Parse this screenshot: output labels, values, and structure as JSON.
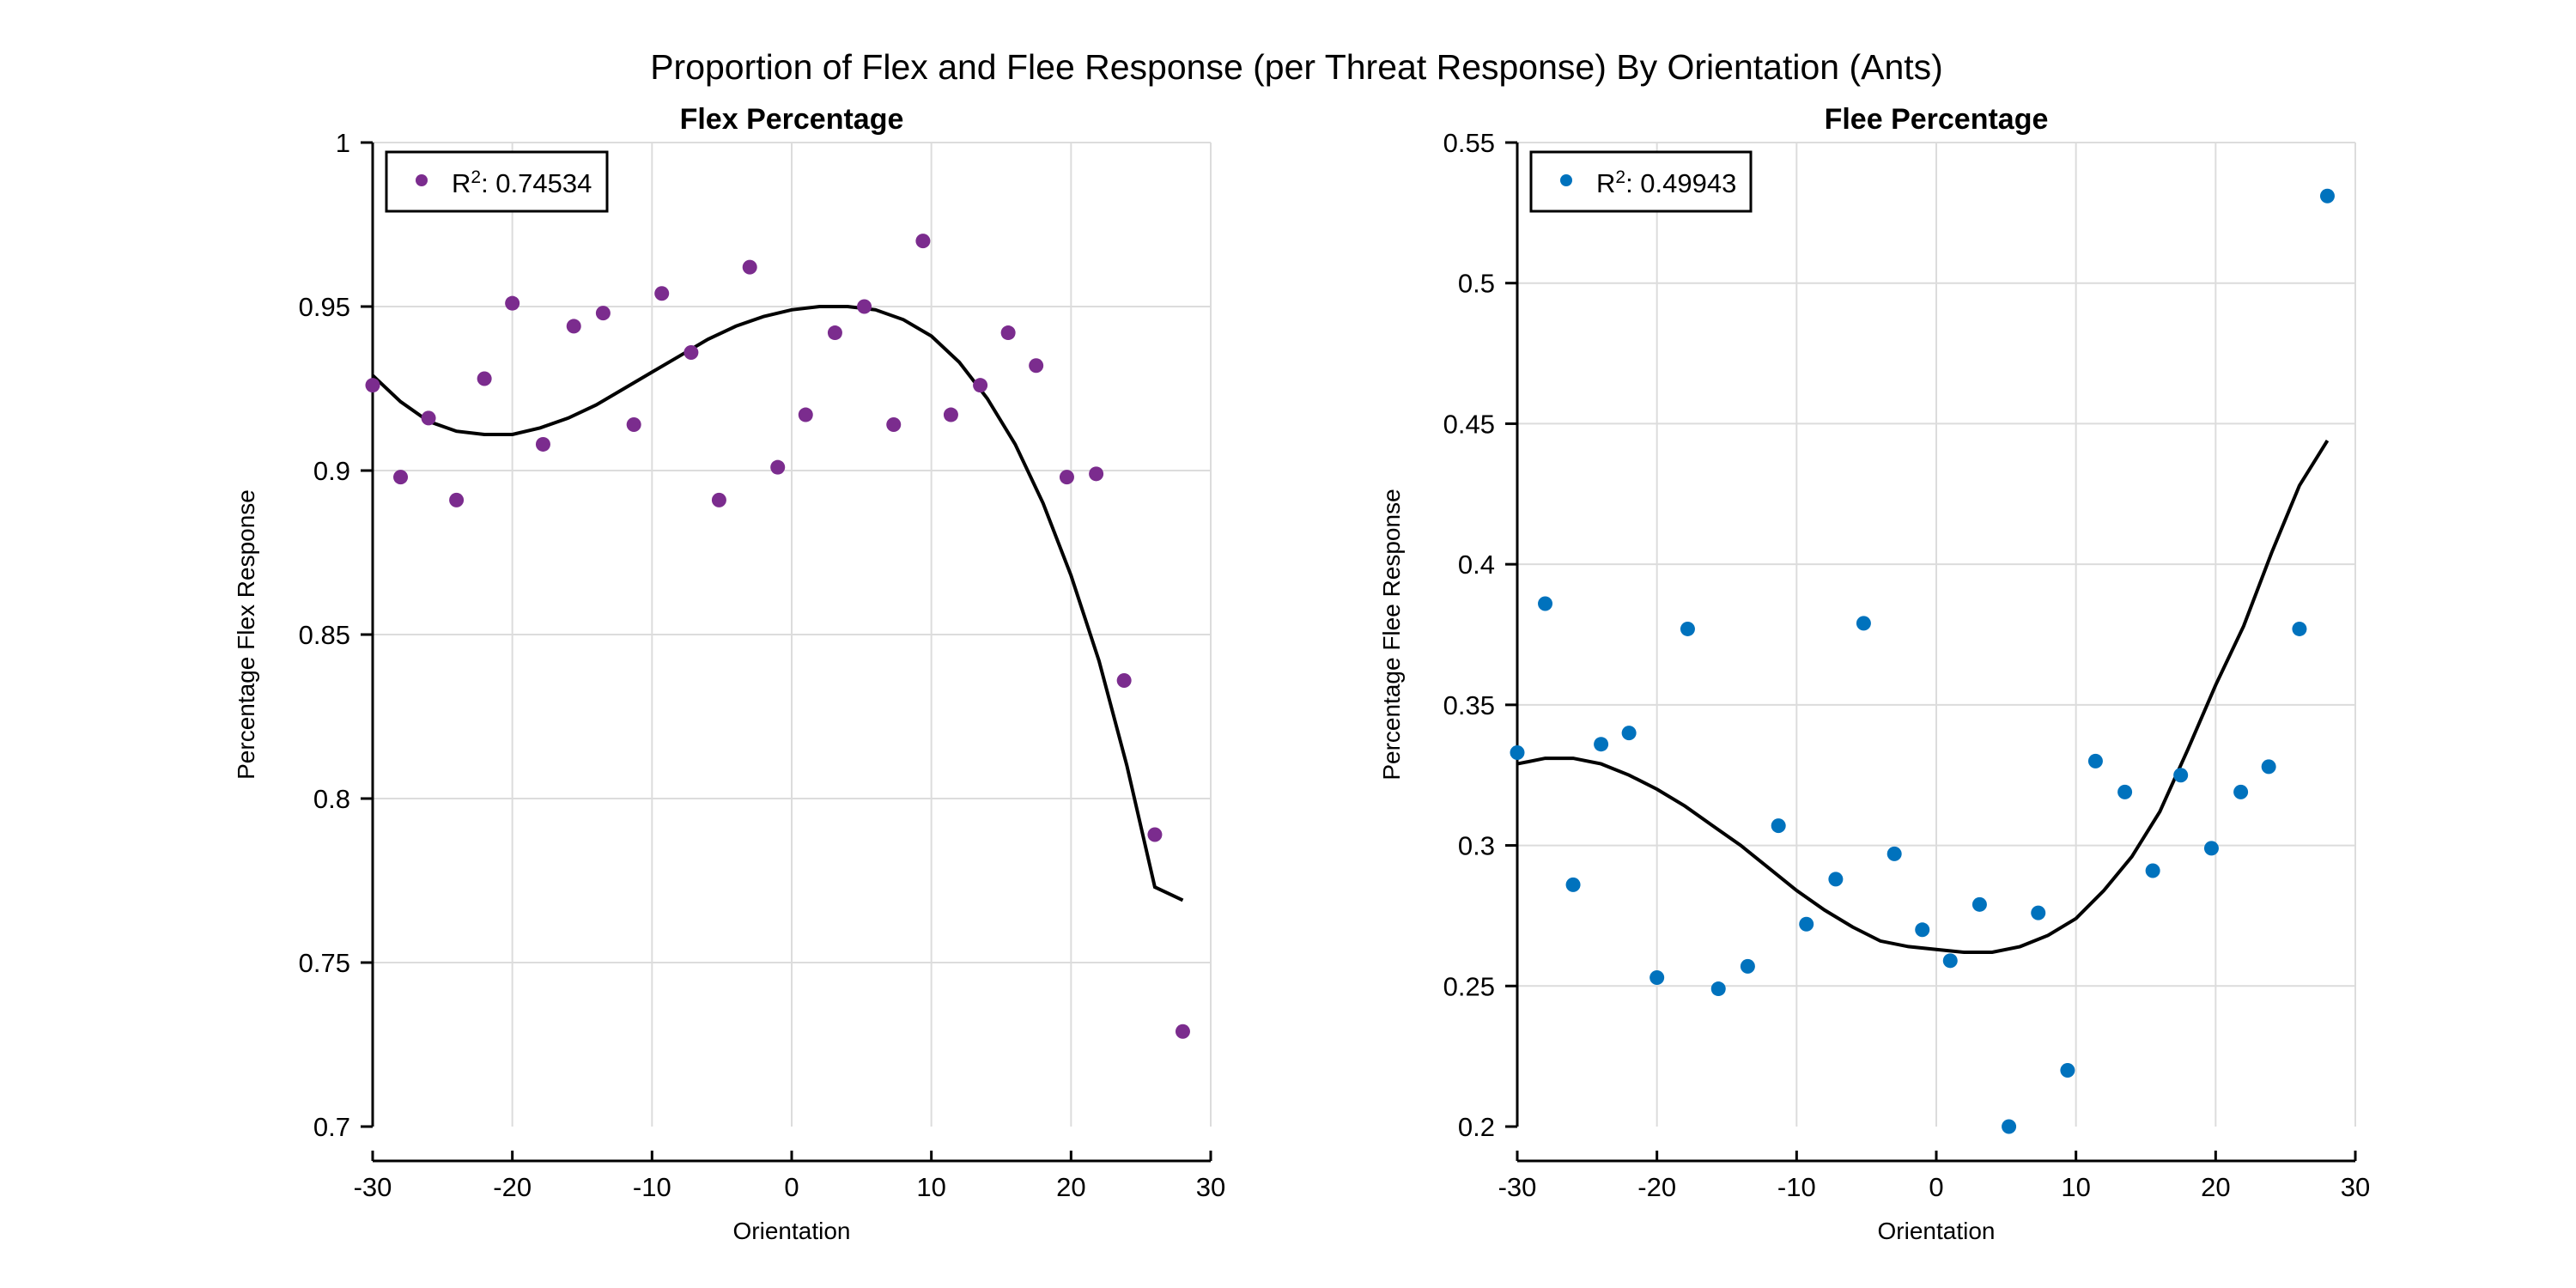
{
  "figure": {
    "title": "Proportion of Flex and Flee Response (per Threat Response) By Orientation (Ants)"
  },
  "chart_data": [
    {
      "type": "scatter",
      "title": "Flex Percentage",
      "xlabel": "Orientation",
      "ylabel": "Percentage Flex Response",
      "xlim": [
        -30,
        30
      ],
      "ylim": [
        0.7,
        1.0
      ],
      "xticks": [
        -30,
        -20,
        -10,
        0,
        10,
        20,
        30
      ],
      "yticks": [
        0.7,
        0.75,
        0.8,
        0.85,
        0.9,
        0.95,
        1
      ],
      "ytick_labels": [
        "0.7",
        "0.75",
        "0.8",
        "0.85",
        "0.9",
        "0.95",
        "1"
      ],
      "grid": true,
      "legend": {
        "position": "top-left",
        "label": "R²: 0.74534",
        "prefix": "R",
        "sup": "2",
        "value": ": 0.74534"
      },
      "colors": {
        "points": "#7B2C8E",
        "fit": "#000000"
      },
      "points": {
        "x": [
          -30,
          -28,
          -26,
          -24,
          -22,
          -20,
          -17.8,
          -15.6,
          -13.5,
          -11.3,
          -9.3,
          -7.2,
          -5.2,
          -3,
          -1,
          1,
          3.1,
          5.2,
          7.3,
          9.4,
          11.4,
          13.5,
          15.5,
          17.5,
          19.7,
          21.8,
          23.8,
          26,
          28
        ],
        "y": [
          0.926,
          0.898,
          0.916,
          0.891,
          0.928,
          0.951,
          0.908,
          0.944,
          0.948,
          0.914,
          0.954,
          0.936,
          0.891,
          0.962,
          0.901,
          0.917,
          0.942,
          0.95,
          0.914,
          0.97,
          0.917,
          0.926,
          0.942,
          0.932,
          0.898,
          0.899,
          0.836,
          0.789,
          0.729
        ]
      },
      "fit": {
        "x": [
          -30,
          -28,
          -26,
          -24,
          -22,
          -20,
          -18,
          -16,
          -14,
          -12,
          -10,
          -8,
          -6,
          -4,
          -2,
          0,
          2,
          4,
          6,
          8,
          10,
          12,
          14,
          16,
          18,
          20,
          22,
          24,
          26,
          28
        ],
        "y": [
          0.929,
          0.921,
          0.915,
          0.912,
          0.911,
          0.911,
          0.913,
          0.916,
          0.92,
          0.925,
          0.93,
          0.935,
          0.94,
          0.944,
          0.947,
          0.949,
          0.95,
          0.95,
          0.949,
          0.946,
          0.941,
          0.933,
          0.922,
          0.908,
          0.89,
          0.868,
          0.842,
          0.81,
          0.773,
          0.769
        ]
      }
    },
    {
      "type": "scatter",
      "title": "Flee Percentage",
      "xlabel": "Orientation",
      "ylabel": "Percentage Flee Response",
      "xlim": [
        -30,
        30
      ],
      "ylim": [
        0.2,
        0.55
      ],
      "xticks": [
        -30,
        -20,
        -10,
        0,
        10,
        20,
        30
      ],
      "yticks": [
        0.2,
        0.25,
        0.3,
        0.35,
        0.4,
        0.45,
        0.5,
        0.55
      ],
      "ytick_labels": [
        "0.2",
        "0.25",
        "0.3",
        "0.35",
        "0.4",
        "0.45",
        "0.5",
        "0.55"
      ],
      "grid": true,
      "legend": {
        "position": "top-left",
        "label": "R²: 0.49943",
        "prefix": "R",
        "sup": "2",
        "value": ": 0.49943"
      },
      "colors": {
        "points": "#0072BD",
        "fit": "#000000"
      },
      "points": {
        "x": [
          -30,
          -28,
          -26,
          -24,
          -22,
          -20,
          -17.8,
          -15.6,
          -13.5,
          -11.3,
          -9.3,
          -7.2,
          -5.2,
          -3,
          -1,
          1,
          3.1,
          5.2,
          7.3,
          9.4,
          11.4,
          13.5,
          15.5,
          17.5,
          19.7,
          21.8,
          23.8,
          26,
          28
        ],
        "y": [
          0.333,
          0.386,
          0.286,
          0.336,
          0.34,
          0.253,
          0.377,
          0.249,
          0.257,
          0.307,
          0.272,
          0.288,
          0.379,
          0.297,
          0.27,
          0.259,
          0.279,
          0.2,
          0.276,
          0.22,
          0.33,
          0.319,
          0.291,
          0.325,
          0.299,
          0.319,
          0.328,
          0.377,
          0.531
        ]
      },
      "fit": {
        "x": [
          -30,
          -28,
          -26,
          -24,
          -22,
          -20,
          -18,
          -16,
          -14,
          -12,
          -10,
          -8,
          -6,
          -4,
          -2,
          0,
          2,
          4,
          6,
          8,
          10,
          12,
          14,
          16,
          18,
          20,
          22,
          24,
          26,
          28
        ],
        "y": [
          0.329,
          0.331,
          0.331,
          0.329,
          0.325,
          0.32,
          0.314,
          0.307,
          0.3,
          0.292,
          0.284,
          0.277,
          0.271,
          0.266,
          0.264,
          0.263,
          0.262,
          0.262,
          0.264,
          0.268,
          0.274,
          0.284,
          0.296,
          0.312,
          0.334,
          0.357,
          0.378,
          0.404,
          0.428,
          0.444
        ]
      }
    }
  ]
}
